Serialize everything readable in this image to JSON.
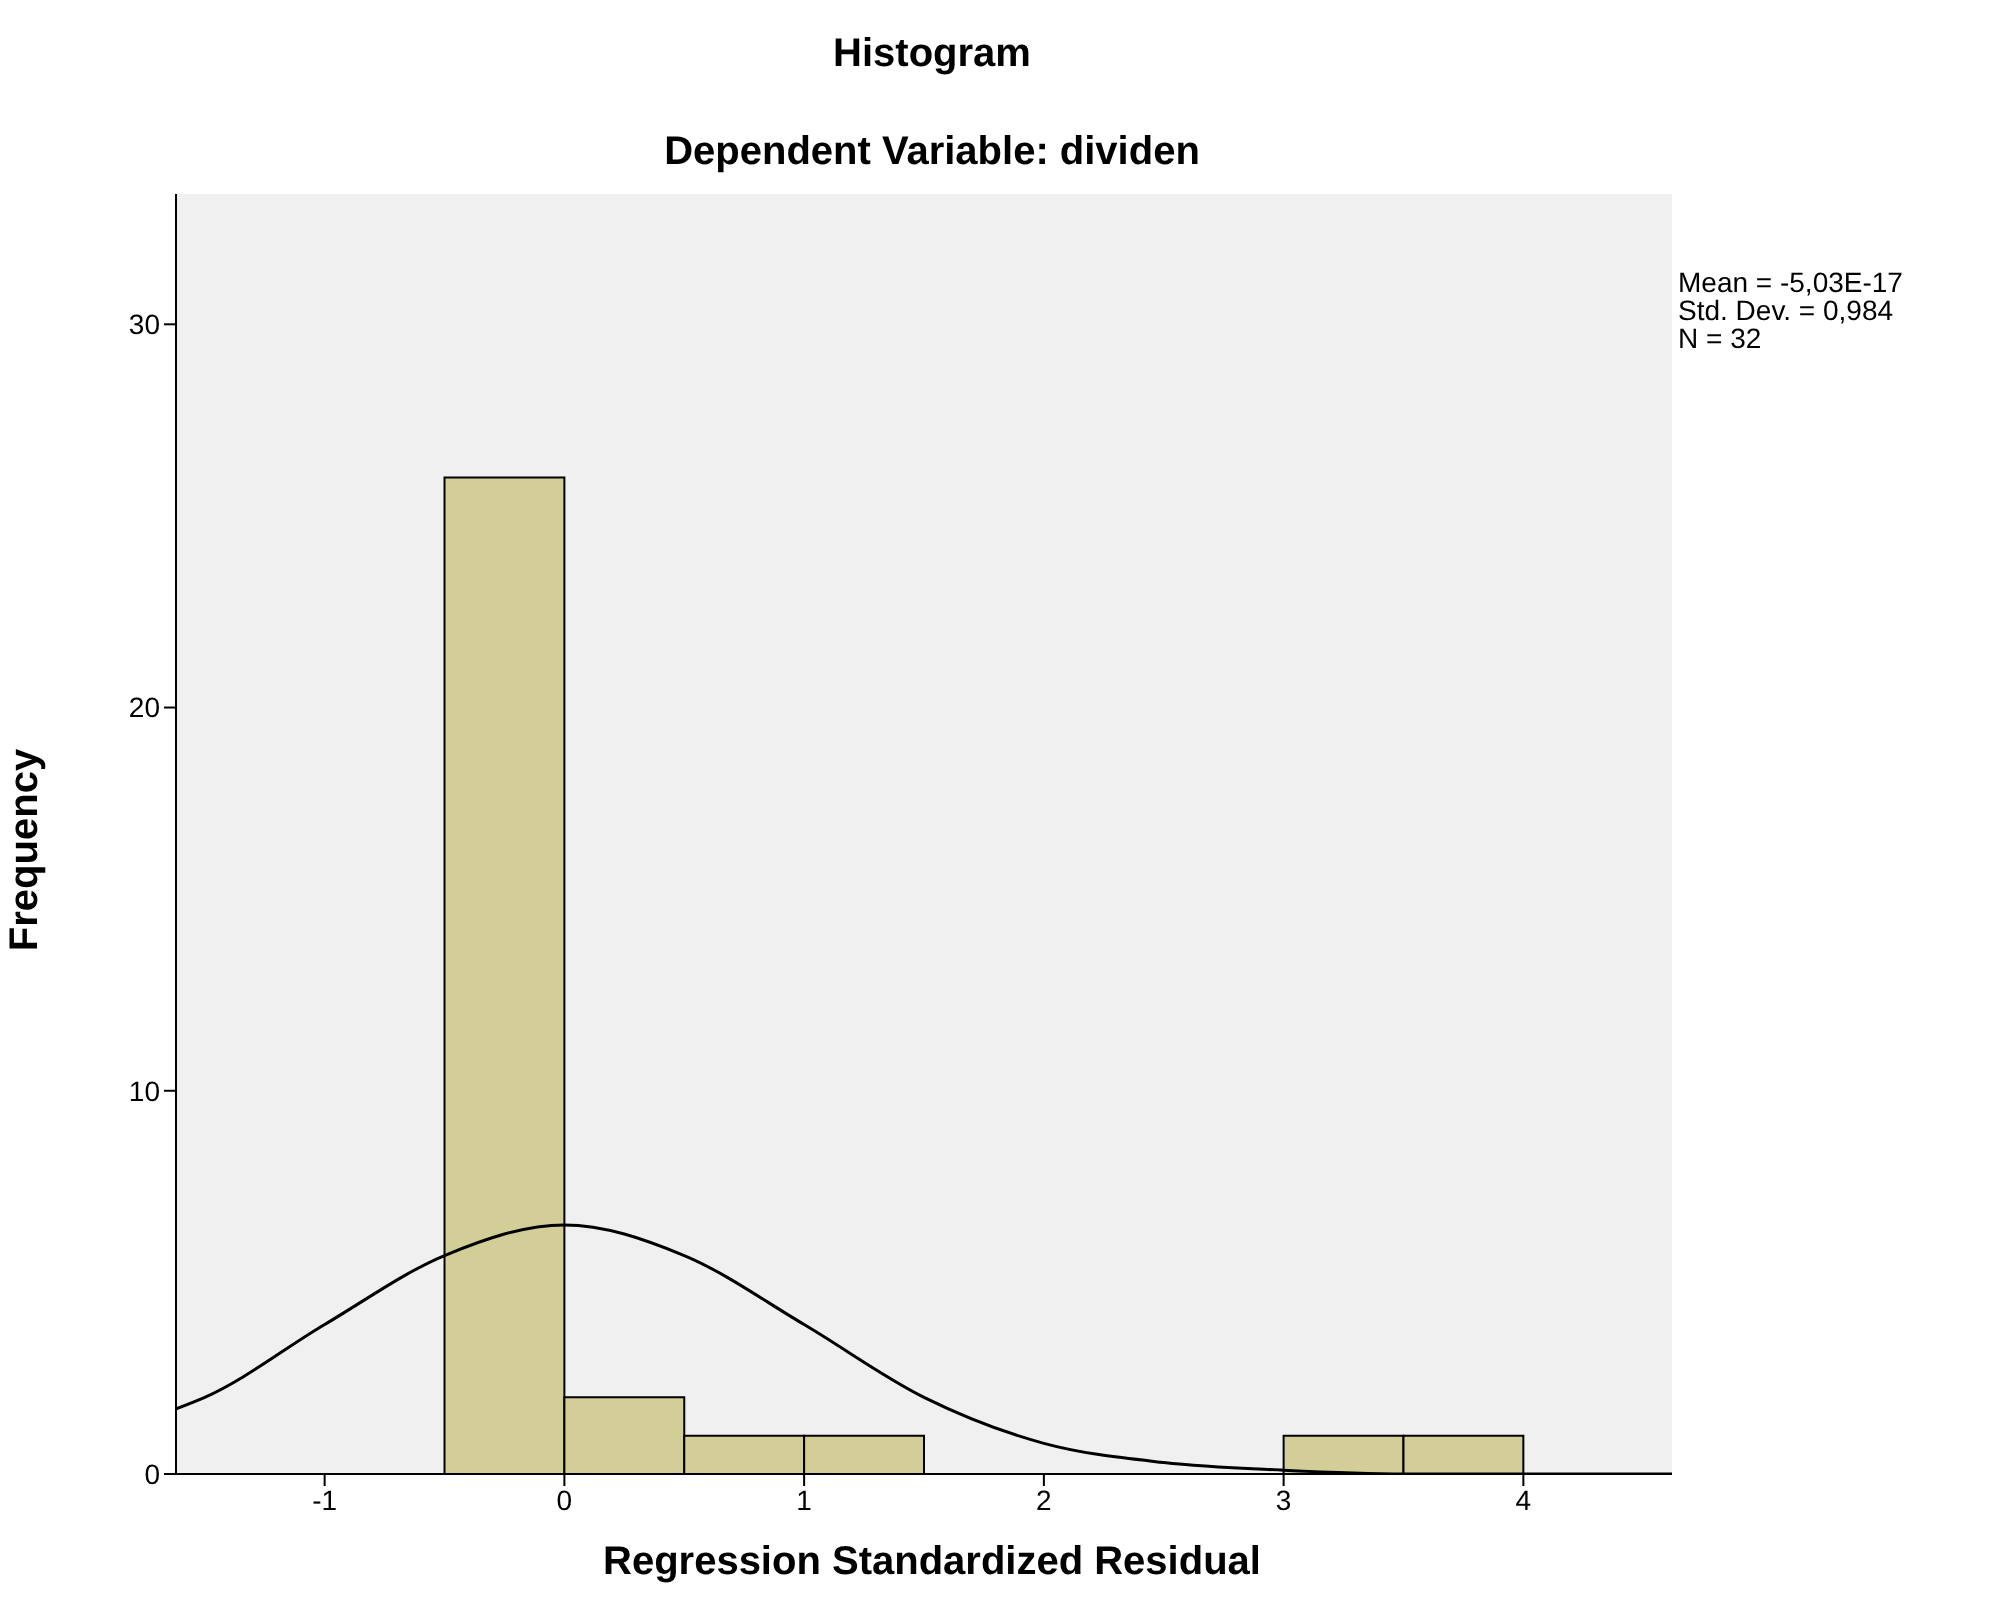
{
  "chart_data": {
    "type": "histogram",
    "title": "Histogram",
    "subtitle": "Dependent Variable: dividen",
    "xlabel": "Regression Standardized Residual",
    "ylabel": "Frequency",
    "annotations": [
      "Mean = -5,03E-17\nStd. Dev. = 0,984\nN = 32"
    ],
    "bins": [
      -0.5,
      0,
      0.5,
      1,
      1.5,
      2,
      2.5,
      3,
      3.5,
      4
    ],
    "values": [
      26,
      2,
      1,
      1,
      0,
      0,
      0,
      1,
      1
    ],
    "color": "#d3ce97",
    "series": [
      {
        "type": "line",
        "color": "#000000",
        "x": [
          -1.62,
          -1.5,
          -1,
          -0.5,
          0,
          0.5,
          1,
          1.5,
          2,
          2.5,
          3,
          3.5,
          4,
          4.62
        ],
        "values": [
          1.7,
          2.0,
          3.9,
          5.7,
          6.5,
          5.7,
          3.9,
          2.0,
          0.8,
          0.3,
          0.1,
          0,
          0,
          0
        ]
      }
    ],
    "xlim": [
      -1.62,
      4.62
    ],
    "ylim": [
      0,
      33.4
    ],
    "xticks": [
      -1,
      0,
      1,
      2,
      3,
      4
    ],
    "yticks": [
      0,
      10,
      20,
      30
    ],
    "grid": false,
    "marker": "none",
    "line_style": "solid"
  }
}
